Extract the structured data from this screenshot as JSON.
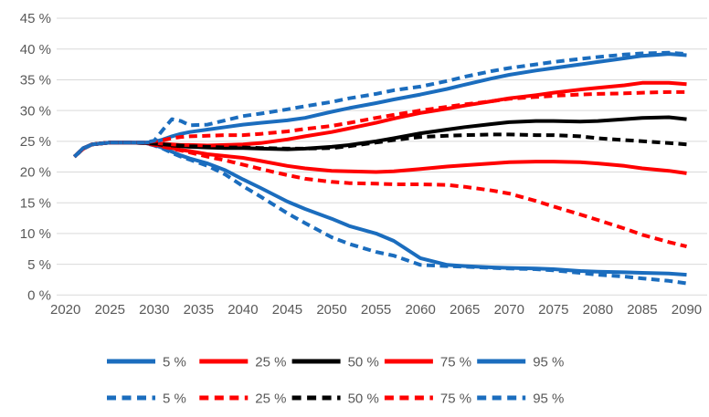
{
  "chart_data": {
    "type": "line",
    "title": "",
    "xlabel": "",
    "ylabel": "",
    "ylim": [
      0,
      45
    ],
    "y_tick_step": 5,
    "grid": "horizontal",
    "legend_position": "bottom-two-rows",
    "y_tick_labels": [
      "45 %",
      "40 %",
      "35 %",
      "30 %",
      "25 %",
      "20 %",
      "15 %",
      "10 %",
      "5 %",
      "0 %"
    ],
    "x_tick_labels": [
      "2020",
      "2025",
      "2030",
      "2035",
      "2040",
      "2045",
      "2050",
      "2055",
      "2060",
      "2065",
      "2070",
      "2075",
      "2080",
      "2085",
      "2090"
    ],
    "x_tick_years": [
      2020,
      2025,
      2030,
      2035,
      2040,
      2045,
      2050,
      2055,
      2060,
      2065,
      2070,
      2075,
      2080,
      2085,
      2090
    ],
    "x": [
      2021,
      2022,
      2023,
      2025,
      2027,
      2029,
      2030,
      2031,
      2032,
      2033,
      2034,
      2036,
      2038,
      2040,
      2042,
      2045,
      2047,
      2050,
      2052,
      2055,
      2057,
      2060,
      2063,
      2065,
      2068,
      2070,
      2073,
      2075,
      2078,
      2080,
      2083,
      2085,
      2088,
      2090
    ],
    "series": [
      {
        "id": "p5-solid",
        "name": "5 %",
        "color_key": "blue",
        "line": "solid",
        "values": [
          22.5,
          23.8,
          24.5,
          24.8,
          24.8,
          24.7,
          24.4,
          23.9,
          23.3,
          22.7,
          22.2,
          21.4,
          20.3,
          18.8,
          17.4,
          15.2,
          14.0,
          12.4,
          11.2,
          10.0,
          8.8,
          6.0,
          4.9,
          4.7,
          4.5,
          4.4,
          4.3,
          4.2,
          3.9,
          3.8,
          3.7,
          3.6,
          3.5,
          3.3
        ]
      },
      {
        "id": "p25-solid",
        "name": "25 %",
        "color_key": "red",
        "line": "solid",
        "values": [
          22.5,
          23.8,
          24.5,
          24.8,
          24.8,
          24.7,
          24.5,
          24.2,
          23.9,
          23.6,
          23.4,
          22.9,
          22.6,
          22.3,
          21.8,
          21.0,
          20.6,
          20.2,
          20.1,
          20.0,
          20.1,
          20.5,
          20.9,
          21.1,
          21.4,
          21.6,
          21.7,
          21.7,
          21.6,
          21.4,
          21.0,
          20.6,
          20.2,
          19.8
        ]
      },
      {
        "id": "p50-solid",
        "name": "50 %",
        "color_key": "black",
        "line": "solid",
        "values": [
          22.5,
          23.8,
          24.5,
          24.8,
          24.8,
          24.7,
          24.6,
          24.4,
          24.3,
          24.2,
          24.1,
          24.0,
          23.9,
          23.9,
          23.8,
          23.7,
          23.8,
          24.1,
          24.4,
          25.0,
          25.5,
          26.3,
          26.9,
          27.3,
          27.8,
          28.1,
          28.3,
          28.3,
          28.2,
          28.3,
          28.6,
          28.8,
          28.9,
          28.6
        ]
      },
      {
        "id": "p75-solid",
        "name": "75 %",
        "color_key": "red",
        "line": "solid",
        "values": [
          22.5,
          23.8,
          24.5,
          24.8,
          24.8,
          24.8,
          24.7,
          24.6,
          24.5,
          24.4,
          24.4,
          24.3,
          24.4,
          24.5,
          24.7,
          25.3,
          25.8,
          26.5,
          27.1,
          28.0,
          28.7,
          29.6,
          30.3,
          30.8,
          31.5,
          32.0,
          32.5,
          32.9,
          33.4,
          33.7,
          34.1,
          34.5,
          34.5,
          34.3
        ]
      },
      {
        "id": "p95-solid",
        "name": "95 %",
        "color_key": "blue",
        "line": "solid",
        "values": [
          22.5,
          23.9,
          24.5,
          24.8,
          24.8,
          24.8,
          24.9,
          25.3,
          25.8,
          26.2,
          26.5,
          26.9,
          27.3,
          27.7,
          28.0,
          28.4,
          28.8,
          29.8,
          30.4,
          31.2,
          31.8,
          32.6,
          33.5,
          34.2,
          35.2,
          35.8,
          36.5,
          36.9,
          37.5,
          37.9,
          38.5,
          38.9,
          39.2,
          39.0
        ]
      },
      {
        "id": "p5-dashed",
        "name": "5 %",
        "color_key": "blue",
        "line": "dashed",
        "values": [
          22.5,
          23.8,
          24.5,
          24.8,
          24.8,
          24.7,
          24.3,
          23.8,
          23.1,
          22.5,
          22.0,
          21.0,
          19.6,
          17.7,
          16.0,
          13.3,
          11.7,
          9.4,
          8.3,
          7.0,
          6.4,
          4.9,
          4.7,
          4.6,
          4.4,
          4.3,
          4.2,
          4.0,
          3.6,
          3.3,
          3.0,
          2.7,
          2.3,
          1.9
        ]
      },
      {
        "id": "p25-dashed",
        "name": "25 %",
        "color_key": "red",
        "line": "dashed",
        "values": [
          22.5,
          23.8,
          24.5,
          24.8,
          24.8,
          24.7,
          24.4,
          24.1,
          23.8,
          23.5,
          23.2,
          22.5,
          21.9,
          21.2,
          20.5,
          19.5,
          18.9,
          18.4,
          18.2,
          18.1,
          18.0,
          18.0,
          17.9,
          17.6,
          17.0,
          16.5,
          15.3,
          14.4,
          13.1,
          12.2,
          10.8,
          9.8,
          8.6,
          7.9
        ]
      },
      {
        "id": "p50-dashed",
        "name": "50 %",
        "color_key": "black",
        "line": "dashed",
        "values": [
          22.5,
          23.8,
          24.5,
          24.8,
          24.8,
          24.7,
          24.6,
          24.5,
          24.4,
          24.3,
          24.2,
          24.1,
          24.0,
          24.0,
          23.9,
          23.8,
          23.8,
          23.9,
          24.2,
          24.8,
          25.2,
          25.7,
          25.9,
          26.0,
          26.1,
          26.1,
          26.0,
          26.0,
          25.8,
          25.5,
          25.2,
          25.0,
          24.7,
          24.5
        ]
      },
      {
        "id": "p75-dashed",
        "name": "75 %",
        "color_key": "red",
        "line": "dashed",
        "values": [
          22.5,
          23.8,
          24.5,
          24.8,
          24.8,
          24.8,
          25.0,
          25.2,
          25.5,
          25.7,
          25.8,
          25.9,
          26.0,
          26.0,
          26.2,
          26.6,
          27.0,
          27.5,
          28.0,
          28.8,
          29.3,
          30.0,
          30.6,
          31.0,
          31.5,
          31.9,
          32.2,
          32.4,
          32.6,
          32.7,
          32.8,
          32.9,
          33.0,
          33.0
        ]
      },
      {
        "id": "p95-dashed",
        "name": "95 %",
        "color_key": "blue",
        "line": "dashed",
        "values": [
          22.5,
          23.8,
          24.5,
          24.8,
          24.8,
          24.8,
          25.1,
          26.9,
          28.6,
          28.3,
          27.6,
          27.7,
          28.4,
          29.1,
          29.5,
          30.2,
          30.7,
          31.4,
          32.0,
          32.7,
          33.3,
          33.9,
          34.8,
          35.5,
          36.4,
          36.9,
          37.5,
          37.9,
          38.4,
          38.7,
          39.1,
          39.3,
          39.4,
          39.2
        ]
      }
    ]
  },
  "colors": {
    "blue": "#1B6DBE",
    "red": "#FF0000",
    "black": "#000000",
    "gridline": "#D9D9D9",
    "tick_text": "#595959",
    "background": "#FFFFFF"
  }
}
